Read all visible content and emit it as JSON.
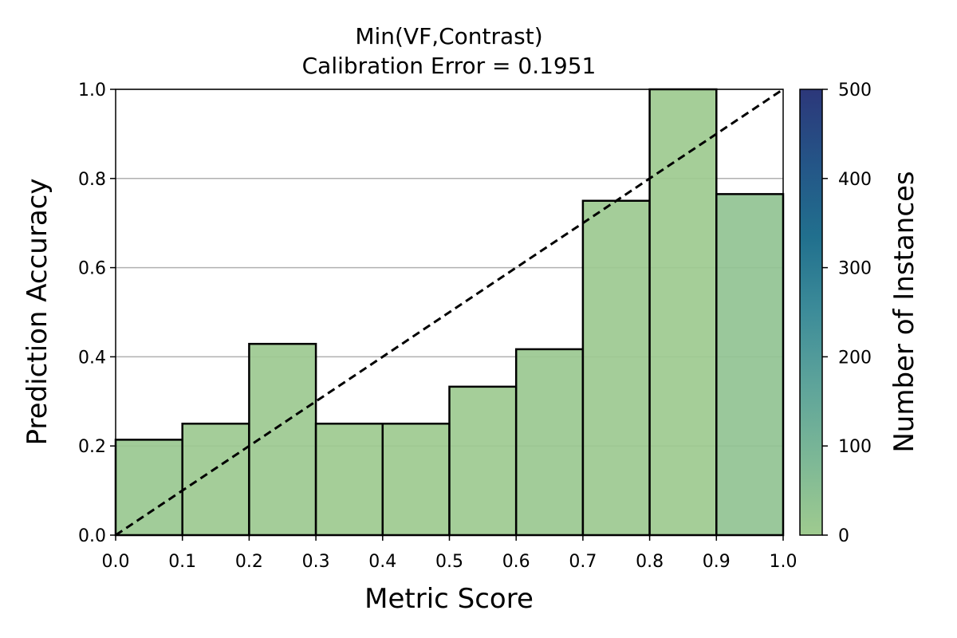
{
  "chart_data": {
    "type": "bar",
    "title_line1": "Min(VF,Contrast)",
    "title_line2": "Calibration Error = 0.1951",
    "xlabel": "Metric Score",
    "ylabel": "Prediction Accuracy",
    "xlim": [
      0.0,
      1.0
    ],
    "ylim": [
      0.0,
      1.0
    ],
    "bin_edges": [
      0.0,
      0.1,
      0.2,
      0.3,
      0.4,
      0.5,
      0.6,
      0.7,
      0.8,
      0.9,
      1.0
    ],
    "values": [
      0.214,
      0.25,
      0.429,
      0.25,
      0.25,
      0.333,
      0.417,
      0.75,
      1.0,
      0.765
    ],
    "counts": [
      14,
      8,
      7,
      4,
      4,
      6,
      12,
      8,
      5,
      34
    ],
    "x_ticks": [
      "0.0",
      "0.1",
      "0.2",
      "0.3",
      "0.4",
      "0.5",
      "0.6",
      "0.7",
      "0.8",
      "0.9",
      "1.0"
    ],
    "y_ticks": [
      "0.0",
      "0.2",
      "0.4",
      "0.6",
      "0.8",
      "1.0"
    ],
    "y_grid": true,
    "reference_line": {
      "style": "dashed",
      "color": "#000000",
      "from": [
        0.0,
        0.0
      ],
      "to": [
        1.0,
        1.0
      ]
    },
    "colorbar": {
      "label": "Number of Instances",
      "range": [
        0,
        500
      ],
      "ticks": [
        "0",
        "100",
        "200",
        "300",
        "400",
        "500"
      ],
      "colors": [
        "#9fcb8f",
        "#7db896",
        "#5ea49a",
        "#3d8c99",
        "#21708e",
        "#245587",
        "#2c377a"
      ]
    },
    "colors": {
      "bar_edge": "#000000",
      "grid": "#b0b0b0"
    }
  }
}
